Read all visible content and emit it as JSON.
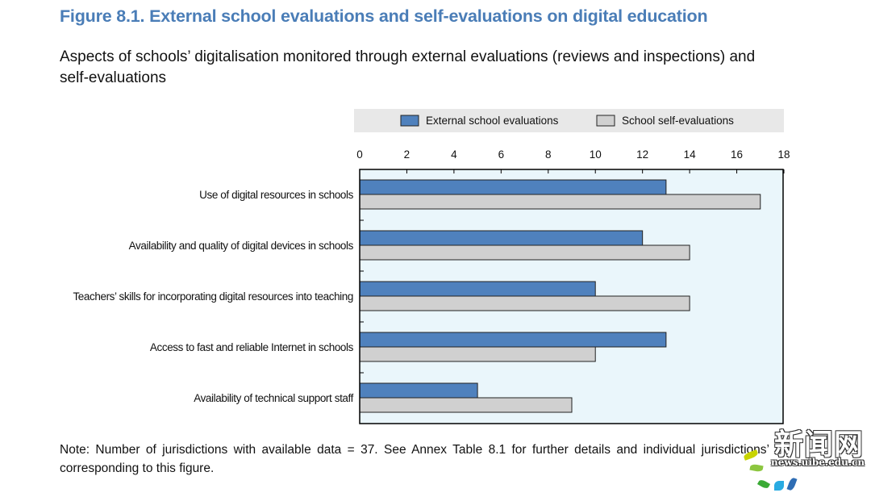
{
  "title": "Figure 8.1. External school evaluations and self-evaluations on digital education",
  "subtitle": "Aspects of schools’ digitalisation monitored through external evaluations (reviews and inspections) and self-evaluations",
  "note": "Note: Number of jurisdictions with available data = 37. See Annex Table 8.1 for further details and individual jurisdictions’ corresponding to this figure.",
  "watermark": {
    "logo_text": "新闻网",
    "url_text": "news.uibe.edu.cn"
  },
  "colors": {
    "external": "#4f81bd",
    "self": "#d0d0d0",
    "plot_bg": "#eaf6fb",
    "legend_bg": "#e8e8e8",
    "title": "#4a7db7"
  },
  "chart_data": {
    "type": "bar",
    "orientation": "horizontal",
    "categories": [
      "Use of digital resources in schools",
      "Availability and quality of digital devices in schools",
      "Teachers’ skills for incorporating digital resources into teaching",
      "Access to fast and reliable Internet in schools",
      "Availability of technical support staff"
    ],
    "series": [
      {
        "name": "External school evaluations",
        "values": [
          13,
          12,
          10,
          13,
          5
        ]
      },
      {
        "name": "School self-evaluations",
        "values": [
          17,
          14,
          14,
          10,
          9
        ]
      }
    ],
    "xlim": [
      0,
      18
    ],
    "xticks": [
      "0",
      "2",
      "4",
      "6",
      "8",
      "10",
      "12",
      "14",
      "16",
      "18"
    ],
    "axis_position": "top",
    "legend_position": "top",
    "grid": false
  }
}
